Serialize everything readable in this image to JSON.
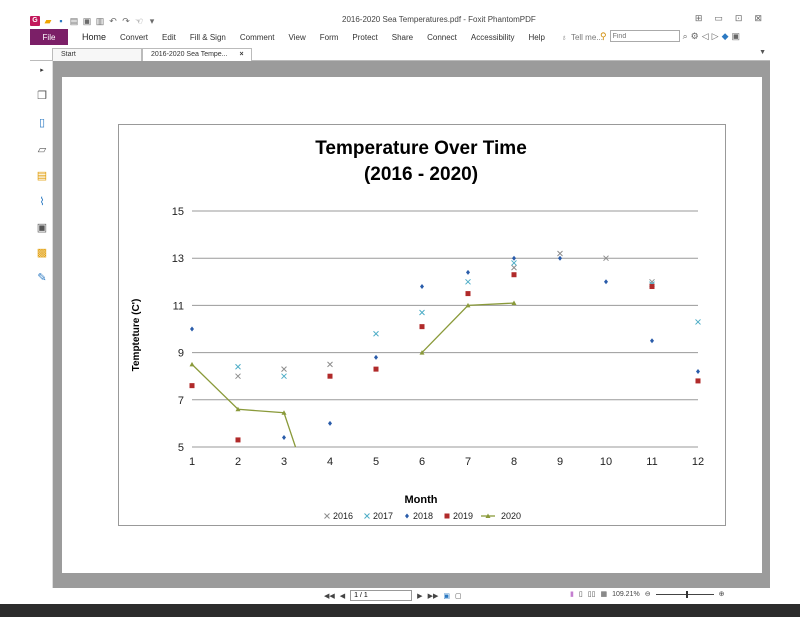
{
  "window": {
    "title": "2016-2020 Sea Temperatures.pdf - Foxit PhantomPDF",
    "controls": [
      "⊞",
      "▭",
      "⊡",
      "⊠"
    ]
  },
  "menu": {
    "file": "File",
    "items": [
      "Home",
      "Convert",
      "Edit",
      "Fill & Sign",
      "Comment",
      "View",
      "Form",
      "Protect",
      "Share",
      "Connect",
      "Accessibility",
      "Help"
    ],
    "tell_me": "Tell me...",
    "find_placeholder": "Find"
  },
  "tabs": {
    "start": "Start",
    "document": "2016-2020 Sea Tempe...",
    "close": "×"
  },
  "statusbar": {
    "page": "1 / 1",
    "zoom": "109.21%"
  },
  "chart_data": {
    "type": "scatter",
    "title": "Temperature Over Time",
    "subtitle": "(2016 - 2020)",
    "xlabel": "Month",
    "ylabel": "Tempteture (C')",
    "xlim": [
      1,
      12
    ],
    "ylim": [
      5,
      15
    ],
    "xticks": [
      1,
      2,
      3,
      4,
      5,
      6,
      7,
      8,
      9,
      10,
      11,
      12
    ],
    "yticks": [
      5,
      7,
      9,
      11,
      13,
      15
    ],
    "grid": "horizontal",
    "legend": "bottom",
    "series": [
      {
        "name": "2016",
        "marker": "x",
        "color": "#8c8c8c",
        "x": [
          2,
          3,
          4,
          8,
          9,
          10,
          11
        ],
        "y": [
          8.0,
          8.3,
          8.5,
          12.6,
          13.2,
          13.0,
          12.0
        ]
      },
      {
        "name": "2017",
        "marker": "x",
        "color": "#4bacc6",
        "x": [
          2,
          3,
          5,
          6,
          7,
          8,
          11,
          12
        ],
        "y": [
          8.4,
          8.0,
          9.8,
          10.7,
          12.0,
          12.8,
          11.9,
          10.3
        ]
      },
      {
        "name": "2018",
        "marker": "diamond",
        "color": "#2a5caa",
        "x": [
          1,
          3,
          4,
          5,
          6,
          7,
          8,
          9,
          10,
          11,
          12
        ],
        "y": [
          10.0,
          5.4,
          6.0,
          8.8,
          11.8,
          12.4,
          13.0,
          13.0,
          12.0,
          9.5,
          8.2
        ]
      },
      {
        "name": "2019",
        "marker": "square",
        "color": "#b02a2a",
        "x": [
          1,
          2,
          4,
          5,
          6,
          7,
          8,
          11,
          12
        ],
        "y": [
          7.6,
          5.3,
          8.0,
          8.3,
          10.1,
          11.5,
          12.3,
          11.8,
          7.8
        ]
      },
      {
        "name": "2020",
        "marker": "triangle-line",
        "color": "#8a9a3a",
        "x": [
          1,
          2,
          3,
          3.25
        ],
        "y": [
          8.5,
          6.6,
          6.45,
          5.0
        ],
        "x2": [
          6,
          7,
          8
        ],
        "y2": [
          9.0,
          11.0,
          11.1
        ]
      }
    ]
  }
}
